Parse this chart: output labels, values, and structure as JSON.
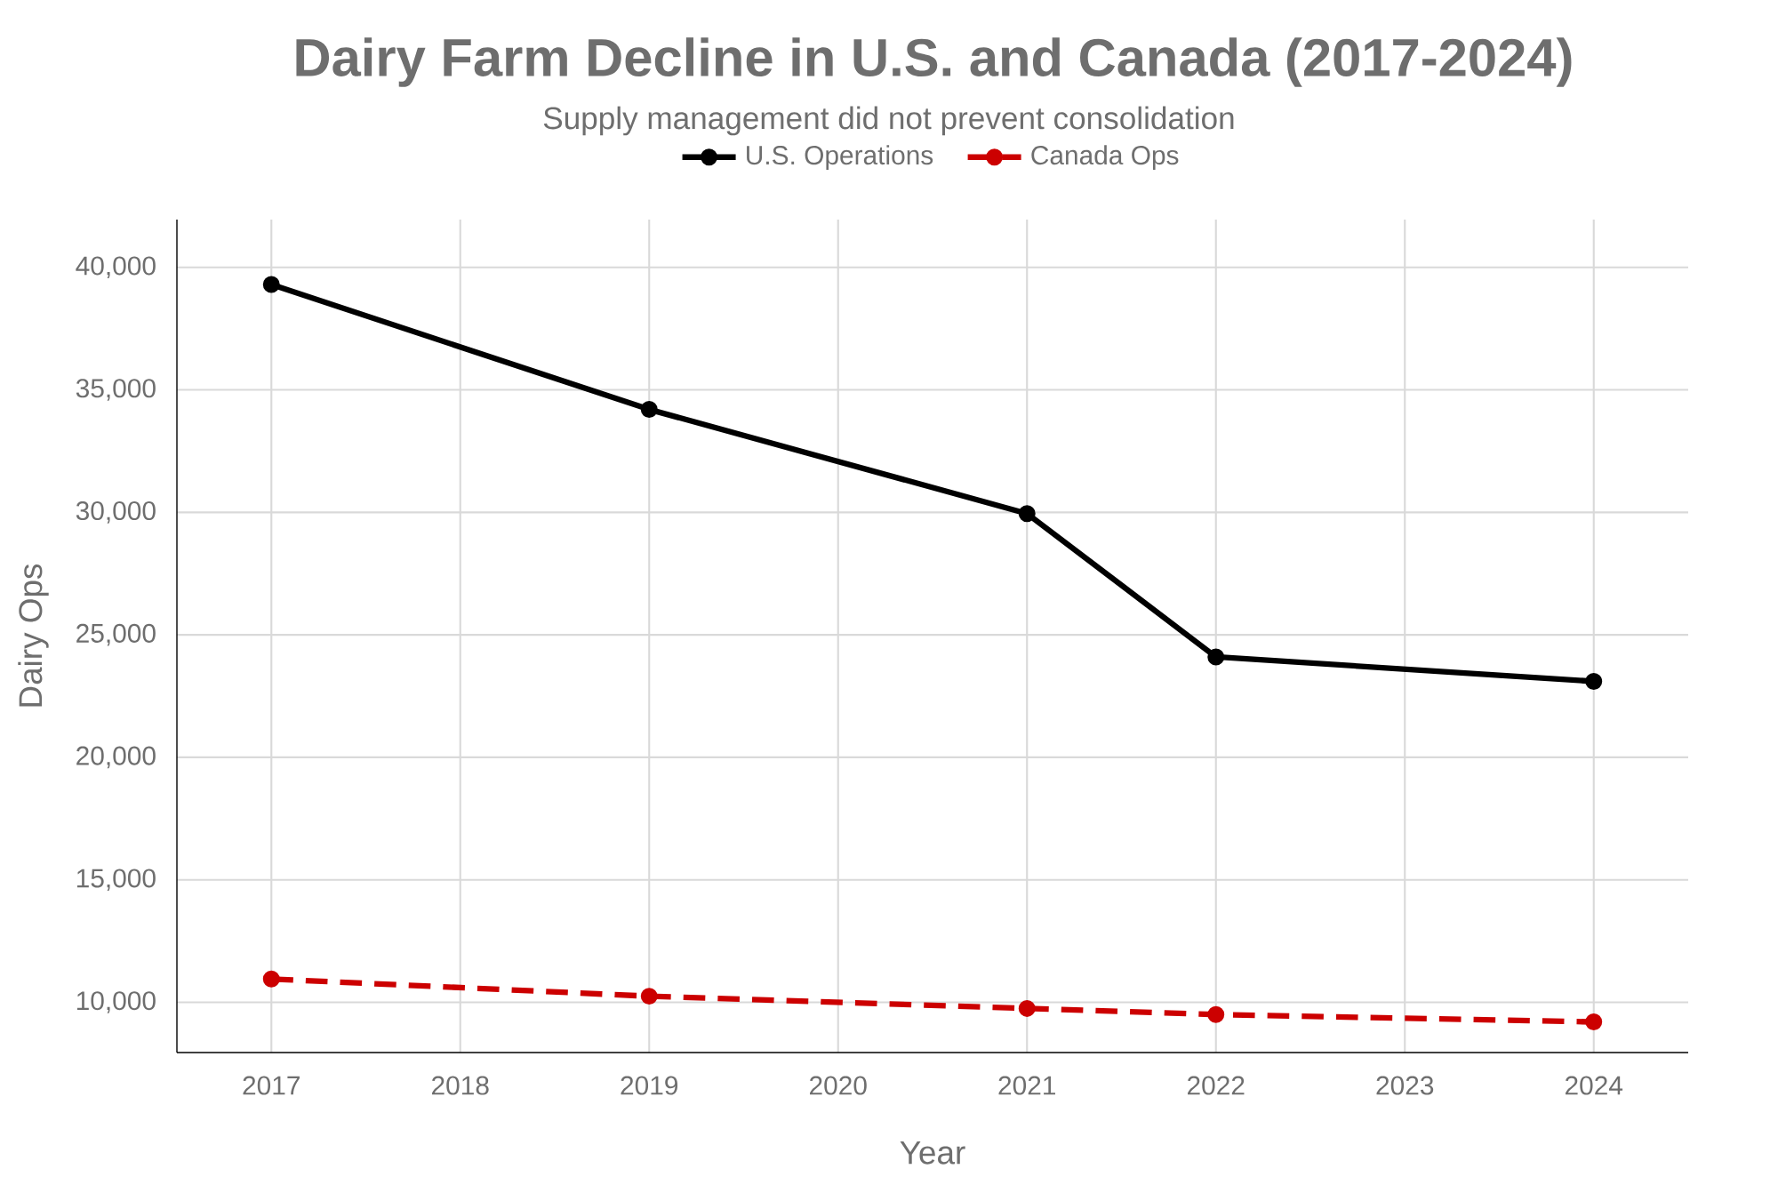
{
  "chart_data": {
    "type": "line",
    "title": "Dairy Farm Decline in U.S. and Canada (2017-2024)",
    "subtitle": "Supply management did not prevent consolidation",
    "xlabel": "Year",
    "ylabel": "Dairy Ops",
    "x": [
      2017,
      2019,
      2021,
      2022,
      2024
    ],
    "series": [
      {
        "name": "U.S. Operations",
        "color": "#000000",
        "line_style": "solid",
        "values": [
          39300,
          34200,
          29950,
          24100,
          23100
        ]
      },
      {
        "name": "Canada Ops",
        "color": "#cc0000",
        "line_style": "dashed",
        "values": [
          10950,
          10250,
          9750,
          9500,
          9200
        ]
      }
    ],
    "xlim": [
      2016.5,
      2024.5
    ],
    "xticks": [
      2017,
      2018,
      2019,
      2020,
      2021,
      2022,
      2023,
      2024
    ],
    "ylim": [
      7950,
      41950
    ],
    "yticks": [
      {
        "value": 10000,
        "label": "10,000"
      },
      {
        "value": 15000,
        "label": "15,000"
      },
      {
        "value": 20000,
        "label": "20,000"
      },
      {
        "value": 25000,
        "label": "25,000"
      },
      {
        "value": 30000,
        "label": "30,000"
      },
      {
        "value": 35000,
        "label": "35,000"
      },
      {
        "value": 40000,
        "label": "40,000"
      }
    ],
    "grid": true,
    "legend": "top",
    "marker": "circle"
  }
}
